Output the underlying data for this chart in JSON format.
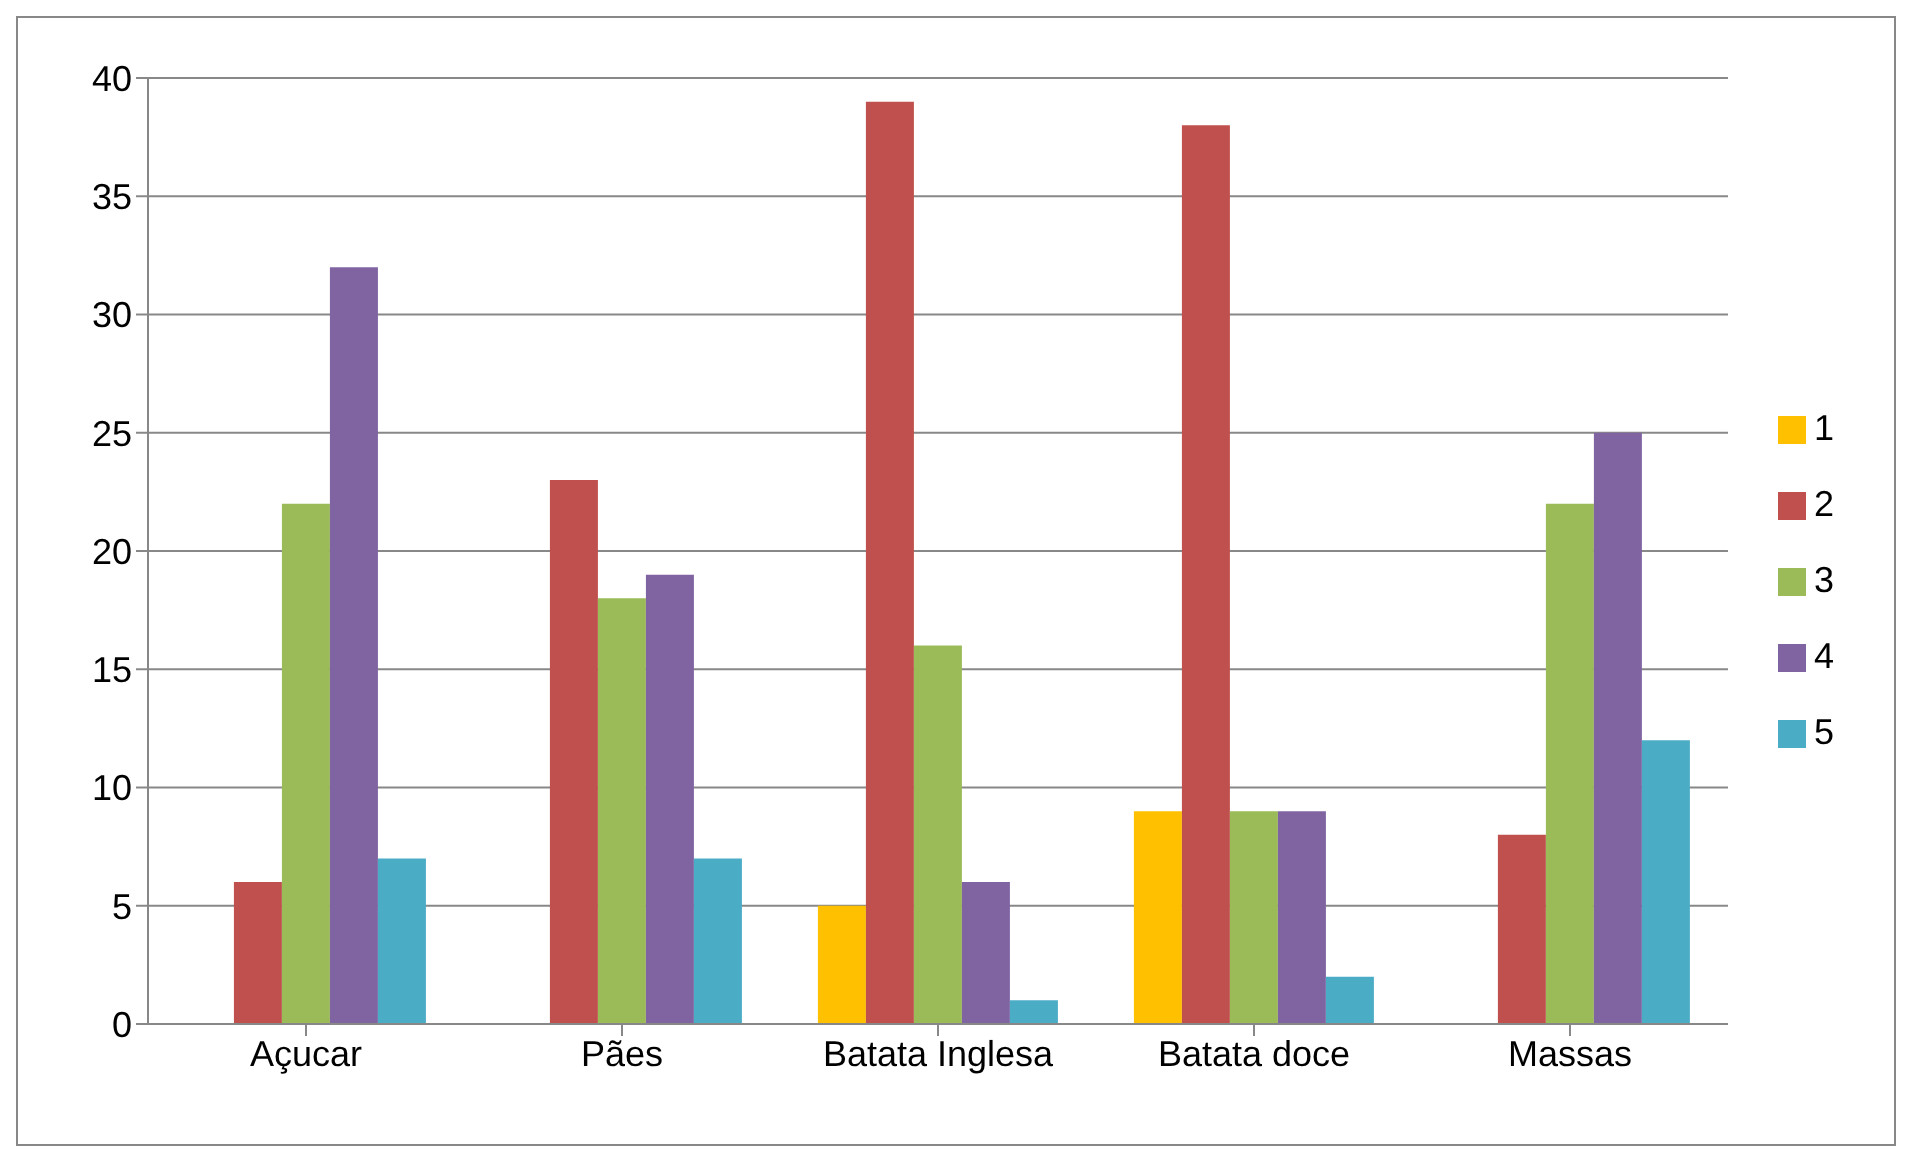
{
  "chart_data": {
    "type": "bar",
    "categories": [
      "Açucar",
      "Pães",
      "Batata Inglesa",
      "Batata doce",
      "Massas"
    ],
    "series": [
      {
        "name": "1",
        "color": "#ffc000",
        "values": [
          0,
          0,
          5,
          9,
          0
        ]
      },
      {
        "name": "2",
        "color": "#c0504d",
        "values": [
          6,
          23,
          39,
          38,
          8
        ]
      },
      {
        "name": "3",
        "color": "#9bbb59",
        "values": [
          22,
          18,
          16,
          9,
          22
        ]
      },
      {
        "name": "4",
        "color": "#8064a2",
        "values": [
          32,
          19,
          6,
          9,
          25
        ]
      },
      {
        "name": "5",
        "color": "#4bacc6",
        "values": [
          7,
          7,
          1,
          2,
          12
        ]
      }
    ],
    "ylim": [
      0,
      40
    ],
    "yticks": [
      0,
      5,
      10,
      15,
      20,
      25,
      30,
      35,
      40
    ],
    "grid": "y",
    "legend": "right"
  }
}
